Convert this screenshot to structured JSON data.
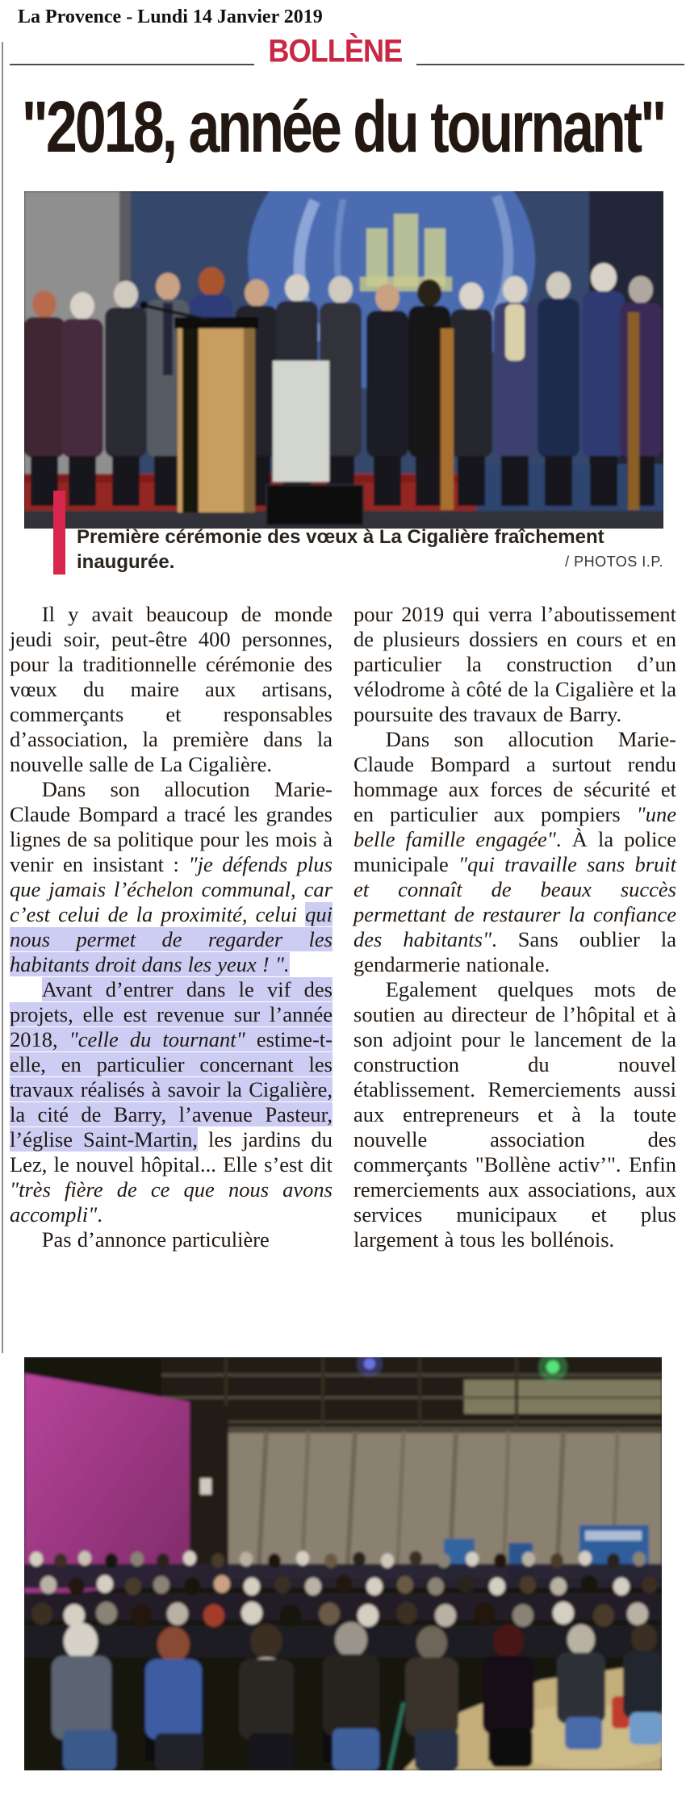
{
  "masthead": {
    "date_line": "La Provence - Lundi 14 Janvier 2019"
  },
  "section": {
    "title": "BOLLÈNE"
  },
  "headline": {
    "title": "\"2018, année du tournant\""
  },
  "photo1": {
    "caption": "Première cérémonie des vœux à La Cigalière fraîchement inaugurée.",
    "credit": "/ PHOTOS I.P.",
    "subject": "group-on-stage-with-podium"
  },
  "photo2": {
    "subject": "audience-seated-in-hall"
  },
  "colors": {
    "section_red": "#c92743",
    "caption_bar_red": "#d8274e",
    "selection_highlight": "#cdcdf3",
    "headline_ink": "#231711",
    "body_ink": "#201812"
  },
  "article": {
    "left": [
      {
        "runs": [
          {
            "t": "Il y avait beaucoup de monde jeudi soir, peut-être 400 personnes, pour la traditionnelle cérémonie des vœux du maire aux artisans, commerçants et responsables d’association, la première dans la nouvelle salle de La Cigalière."
          }
        ]
      },
      {
        "runs": [
          {
            "t": "Dans son allocution Marie-Claude Bompard a tracé les grandes lignes de sa politique pour les mois à venir en insistant : "
          },
          {
            "t": "\"je défends plus que jamais l’échelon communal, car c’est celui de la proximité, celui ",
            "s": "em"
          },
          {
            "t": "qui nous permet de regarder les habitants droit dans les yeux ! \".",
            "s": "em hl"
          }
        ]
      },
      {
        "runs": [
          {
            "t": "Avant d’entrer dans le vif des projets, elle est revenue sur l’année 2018, ",
            "s": "hl"
          },
          {
            "t": "\"celle du tournant\" ",
            "s": "hl em"
          },
          {
            "t": "estime-t-elle, en particulier concernant les travaux réalisés à savoir la Cigalière, la cité de Barry, l’avenue Pasteur, l’église Saint-Martin,",
            "s": "hl"
          },
          {
            "t": " les jardins du Lez, le nouvel hôpital... Elle s’est dit "
          },
          {
            "t": "\"très fière de ce que nous avons accompli\"",
            "s": "em"
          },
          {
            "t": "."
          }
        ]
      },
      {
        "runs": [
          {
            "t": "Pas d’annonce particulière"
          }
        ]
      }
    ],
    "right": [
      {
        "runs": [
          {
            "t": "pour 2019 qui verra l’aboutissement de plusieurs dossiers en cours et en particulier la construction d’un vélodrome à côté de la Cigalière et la poursuite des travaux de Barry."
          }
        ]
      },
      {
        "runs": [
          {
            "t": "Dans son allocution Marie-Claude Bompard a surtout rendu hommage aux forces de sécurité et en particulier aux pompiers "
          },
          {
            "t": "\"une belle famille engagée\"",
            "s": "em"
          },
          {
            "t": ". À la police municipale "
          },
          {
            "t": "\"qui travaille sans bruit et connaît de beaux succès permettant de restaurer la confiance des habitants\"",
            "s": "em"
          },
          {
            "t": ". Sans oublier la gendarmerie nationale."
          }
        ]
      },
      {
        "runs": [
          {
            "t": "Egalement quelques mots de soutien au directeur de l’hôpital et à son adjoint pour le lancement de la construction du nouvel établissement. Remerciements aussi aux entrepreneurs et à la toute nouvelle association des commerçants \"Bollène activ’\". Enfin remerciements aux associations, aux services municipaux et plus largement à tous les bollénois."
          }
        ]
      }
    ]
  }
}
